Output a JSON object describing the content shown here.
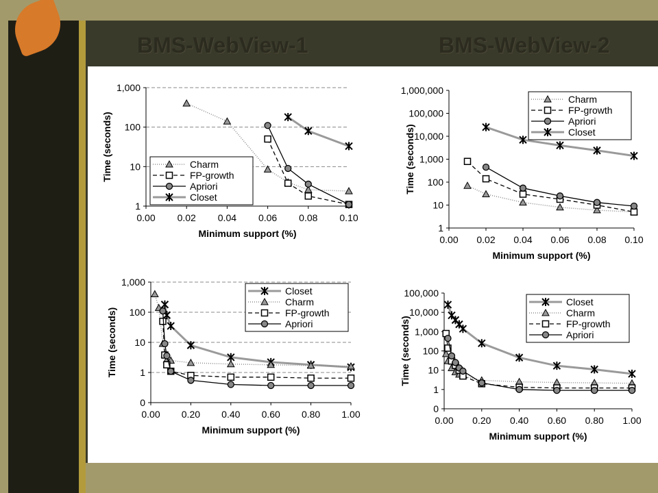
{
  "slide": {
    "titles": [
      "BMS-WebView-1",
      "BMS-WebView-2"
    ]
  },
  "chart_data": [
    {
      "type": "line",
      "log_y": true,
      "grid": true,
      "legend": "lower left",
      "ylabel": "Time (seconds)",
      "xlabel": "Minimum support (%)",
      "xlim": [
        0,
        0.1
      ],
      "xticks": [
        {
          "value": 0,
          "label": "0.00"
        },
        {
          "value": 0.02,
          "label": "0.02"
        },
        {
          "value": 0.04,
          "label": "0.04"
        },
        {
          "value": 0.06,
          "label": "0.06"
        },
        {
          "value": 0.08,
          "label": "0.08"
        },
        {
          "value": 0.1,
          "label": "0.10"
        }
      ],
      "ylim": [
        1,
        1000
      ],
      "yticks": [
        1,
        10,
        100,
        {
          "value": 1000,
          "label": "1,000"
        }
      ],
      "series": [
        {
          "name": "Charm",
          "color": "#8a8a8a",
          "marker": "triangle",
          "line_style": "dotted",
          "x": [
            0.02,
            0.04,
            0.06,
            0.07,
            0.08,
            0.1
          ],
          "values": [
            400,
            140,
            8.5,
            4,
            2.6,
            2.4
          ]
        },
        {
          "name": "FP-growth",
          "color": "#000000",
          "marker": "square",
          "line_style": "dashed",
          "x": [
            0.06,
            0.07,
            0.08,
            0.1
          ],
          "values": [
            50,
            3.8,
            1.8,
            1.1
          ]
        },
        {
          "name": "Apriori",
          "color": "#000000",
          "marker": "circle",
          "line_style": "solid",
          "x": [
            0.06,
            0.07,
            0.08,
            0.1
          ],
          "values": [
            110,
            9,
            3.6,
            1.1
          ]
        },
        {
          "name": "Closet",
          "color": "#9a9a9a",
          "marker": "star",
          "line_style": "thick",
          "x": [
            0.07,
            0.08,
            0.1
          ],
          "values": [
            180,
            80,
            33
          ]
        }
      ]
    },
    {
      "type": "line",
      "log_y": true,
      "grid": false,
      "legend": "upper right",
      "ylabel": "Time (seconds)",
      "xlabel": "Minimum support (%)",
      "xlim": [
        0,
        0.1
      ],
      "xticks": [
        {
          "value": 0,
          "label": "0.00"
        },
        {
          "value": 0.02,
          "label": "0.02"
        },
        {
          "value": 0.04,
          "label": "0.04"
        },
        {
          "value": 0.06,
          "label": "0.06"
        },
        {
          "value": 0.08,
          "label": "0.08"
        },
        {
          "value": 0.1,
          "label": "0.10"
        }
      ],
      "ylim": [
        1,
        1000000
      ],
      "yticks": [
        1,
        10,
        100,
        {
          "value": 1000,
          "label": "1,000"
        },
        {
          "value": 10000,
          "label": "10,000"
        },
        {
          "value": 100000,
          "label": "100,000"
        },
        {
          "value": 1000000,
          "label": "1,000,000"
        }
      ],
      "series": [
        {
          "name": "Charm",
          "color": "#8a8a8a",
          "marker": "triangle",
          "line_style": "dotted",
          "x": [
            0.01,
            0.02,
            0.04,
            0.06,
            0.08,
            0.1
          ],
          "values": [
            70,
            30,
            13,
            8,
            6,
            5
          ]
        },
        {
          "name": "FP-growth",
          "color": "#000000",
          "marker": "square",
          "line_style": "dashed",
          "x": [
            0.01,
            0.02,
            0.04,
            0.06,
            0.08,
            0.1
          ],
          "values": [
            800,
            140,
            30,
            18,
            10,
            5
          ]
        },
        {
          "name": "Apriori",
          "color": "#000000",
          "marker": "circle",
          "line_style": "solid",
          "x": [
            0.02,
            0.04,
            0.06,
            0.08,
            0.1
          ],
          "values": [
            450,
            55,
            25,
            13,
            9
          ]
        },
        {
          "name": "Closet",
          "color": "#9a9a9a",
          "marker": "star",
          "line_style": "thick",
          "x": [
            0.02,
            0.04,
            0.06,
            0.08,
            0.1
          ],
          "values": [
            25000,
            7000,
            4000,
            2400,
            1400
          ]
        }
      ]
    },
    {
      "type": "line",
      "log_y": true,
      "grid": true,
      "legend": "upper right",
      "ylabel": "Time (seconds)",
      "xlabel": "Minimum support (%)",
      "xlim": [
        0,
        1
      ],
      "xticks": [
        {
          "value": 0,
          "label": "0.00"
        },
        {
          "value": 0.2,
          "label": "0.20"
        },
        {
          "value": 0.4,
          "label": "0.40"
        },
        {
          "value": 0.6,
          "label": "0.60"
        },
        {
          "value": 0.8,
          "label": "0.80"
        },
        {
          "value": 1,
          "label": "1.00"
        }
      ],
      "ylim": [
        0.1,
        1000
      ],
      "yticks": [
        {
          "value": 0.1,
          "label": "0"
        },
        1,
        10,
        100,
        {
          "value": 1000,
          "label": "1,000"
        }
      ],
      "series": [
        {
          "name": "Closet",
          "color": "#9a9a9a",
          "marker": "star",
          "line_style": "thick",
          "x": [
            0.07,
            0.08,
            0.1,
            0.2,
            0.4,
            0.6,
            0.8,
            1
          ],
          "values": [
            180,
            80,
            35,
            8,
            3.2,
            2.2,
            1.8,
            1.5
          ]
        },
        {
          "name": "Charm",
          "color": "#8a8a8a",
          "marker": "triangle",
          "line_style": "dotted",
          "x": [
            0.02,
            0.04,
            0.06,
            0.07,
            0.08,
            0.1,
            0.2,
            0.4,
            0.6,
            0.8,
            1
          ],
          "values": [
            400,
            140,
            9,
            4,
            2.6,
            2.5,
            2.1,
            1.9,
            1.8,
            1.7,
            1.6
          ]
        },
        {
          "name": "FP-growth",
          "color": "#000000",
          "marker": "square",
          "line_style": "dashed",
          "x": [
            0.06,
            0.07,
            0.08,
            0.1,
            0.2,
            0.4,
            0.6,
            0.8,
            1
          ],
          "values": [
            50,
            3.8,
            1.8,
            1.1,
            0.8,
            0.7,
            0.7,
            0.65,
            0.65
          ]
        },
        {
          "name": "Apriori",
          "color": "#000000",
          "marker": "circle",
          "line_style": "solid",
          "x": [
            0.06,
            0.07,
            0.08,
            0.1,
            0.2,
            0.4,
            0.6,
            0.8,
            1
          ],
          "values": [
            110,
            9,
            3.6,
            1.1,
            0.55,
            0.4,
            0.37,
            0.37,
            0.37
          ]
        }
      ]
    },
    {
      "type": "line",
      "log_y": true,
      "grid": false,
      "legend": "upper right",
      "ylabel": "Time (seconds)",
      "xlabel": "Minimum support (%)",
      "xlim": [
        0,
        1
      ],
      "xticks": [
        {
          "value": 0,
          "label": "0.00"
        },
        {
          "value": 0.2,
          "label": "0.20"
        },
        {
          "value": 0.4,
          "label": "0.40"
        },
        {
          "value": 0.6,
          "label": "0.60"
        },
        {
          "value": 0.8,
          "label": "0.80"
        },
        {
          "value": 1,
          "label": "1.00"
        }
      ],
      "ylim": [
        0.1,
        100000
      ],
      "yticks": [
        {
          "value": 0.1,
          "label": "0"
        },
        1,
        10,
        100,
        {
          "value": 1000,
          "label": "1,000"
        },
        {
          "value": 10000,
          "label": "10,000"
        },
        {
          "value": 100000,
          "label": "100,000"
        }
      ],
      "series": [
        {
          "name": "Closet",
          "color": "#9a9a9a",
          "marker": "star",
          "line_style": "thick",
          "x": [
            0.02,
            0.04,
            0.06,
            0.08,
            0.1,
            0.2,
            0.4,
            0.6,
            0.8,
            1
          ],
          "values": [
            25000,
            7000,
            4000,
            2400,
            1400,
            250,
            45,
            17,
            11,
            6.5
          ]
        },
        {
          "name": "Charm",
          "color": "#8a8a8a",
          "marker": "triangle",
          "line_style": "dotted",
          "x": [
            0.01,
            0.02,
            0.04,
            0.06,
            0.08,
            0.1,
            0.2,
            0.4,
            0.6,
            0.8,
            1
          ],
          "values": [
            70,
            30,
            13,
            8,
            6,
            5,
            3,
            2.5,
            2.3,
            2.2,
            2.1
          ]
        },
        {
          "name": "FP-growth",
          "color": "#000000",
          "marker": "square",
          "line_style": "dashed",
          "x": [
            0.01,
            0.02,
            0.04,
            0.06,
            0.08,
            0.1,
            0.2,
            0.4,
            0.6,
            0.8,
            1
          ],
          "values": [
            800,
            140,
            30,
            18,
            10,
            5,
            2,
            1.3,
            1.2,
            1.2,
            1.2
          ]
        },
        {
          "name": "Apriori",
          "color": "#000000",
          "marker": "circle",
          "line_style": "solid",
          "x": [
            0.02,
            0.04,
            0.06,
            0.08,
            0.1,
            0.2,
            0.4,
            0.6,
            0.8,
            1
          ],
          "values": [
            450,
            55,
            25,
            13,
            9,
            2.2,
            1,
            0.9,
            0.9,
            0.9
          ]
        }
      ]
    }
  ]
}
